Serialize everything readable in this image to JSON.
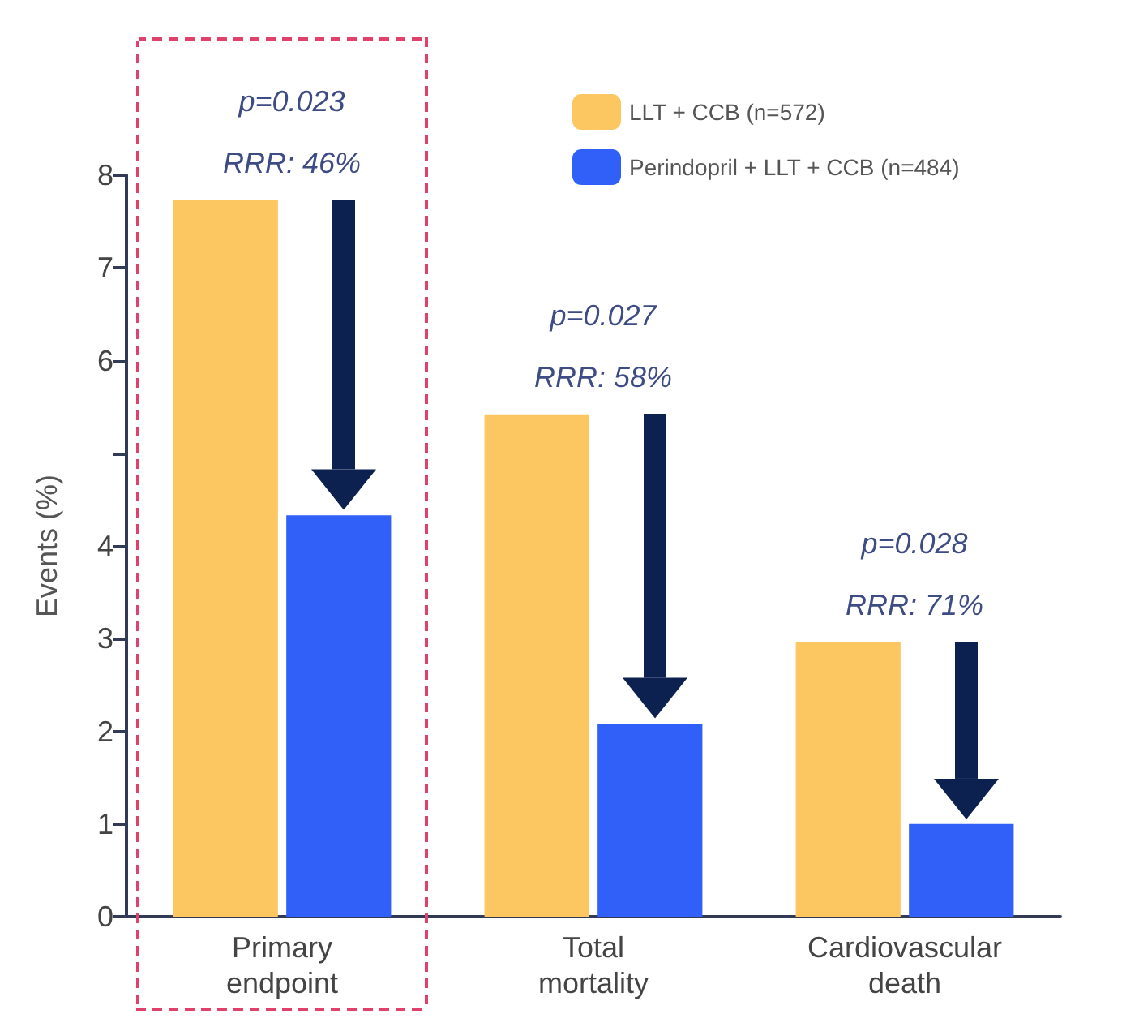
{
  "chart_data": {
    "type": "bar",
    "ylabel": "Events (%)",
    "categories": [
      "Primary\nendpoint",
      "Total\nmortality",
      "Cardiovascular\ndeath"
    ],
    "series": [
      {
        "name": "LLT + CCB (n=572)",
        "color": "#fcc661",
        "values": [
          7.73,
          5.42,
          2.96
        ]
      },
      {
        "name": "Perindopril + LLT + CCB (n=484)",
        "color": "#3060f7",
        "values": [
          4.33,
          2.08,
          1.0
        ]
      }
    ],
    "ylim": [
      0,
      8
    ],
    "yticks": [
      0,
      1,
      2,
      3,
      4,
      {
        "value": 5,
        "label": null
      },
      6,
      7,
      8
    ],
    "grid": false,
    "legend": "top right",
    "annotations": [
      "p=0.023",
      "RRR: 46%",
      "p=0.027",
      "RRR: 58%",
      "p=0.028",
      "RRR: 71%"
    ]
  }
}
